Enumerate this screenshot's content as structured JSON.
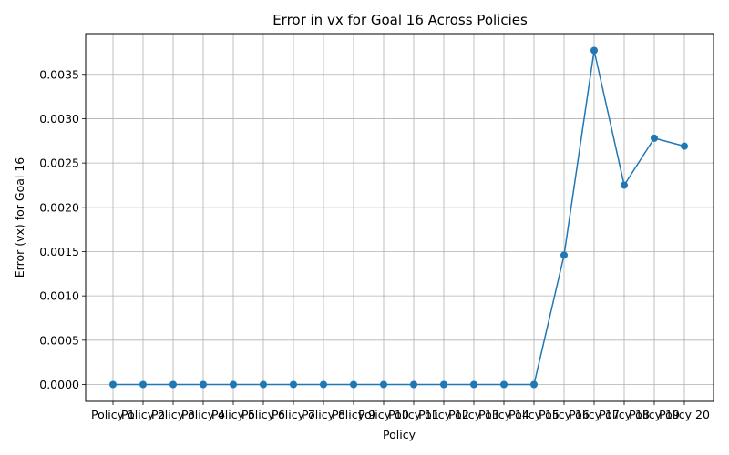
{
  "chart_data": {
    "type": "line",
    "title": "Error in vx for Goal 16 Across Policies",
    "xlabel": "Policy",
    "ylabel": "Error (vx) for Goal 16",
    "categories": [
      "Policy 1",
      "Policy 2",
      "Policy 3",
      "Policy 4",
      "Policy 5",
      "Policy 6",
      "Policy 7",
      "Policy 8",
      "Policy 9",
      "Policy 10",
      "Policy 11",
      "Policy 12",
      "Policy 13",
      "Policy 14",
      "Policy 15",
      "Policy 16",
      "Policy 17",
      "Policy 18",
      "Policy 19",
      "Policy 20"
    ],
    "series": [
      {
        "values": [
          0,
          0,
          0,
          0,
          0,
          0,
          0,
          0,
          0,
          0,
          0,
          0,
          0,
          0,
          0,
          0.00146,
          0.00377,
          0.00225,
          0.00278,
          0.00269
        ],
        "color": "#1f77b4"
      }
    ],
    "yticks": [
      "0.0000",
      "0.0005",
      "0.0010",
      "0.0015",
      "0.0020",
      "0.0025",
      "0.0030",
      "0.0035"
    ],
    "ylim": [
      -0.00019,
      0.00396
    ],
    "grid": true,
    "marker": "circle"
  }
}
